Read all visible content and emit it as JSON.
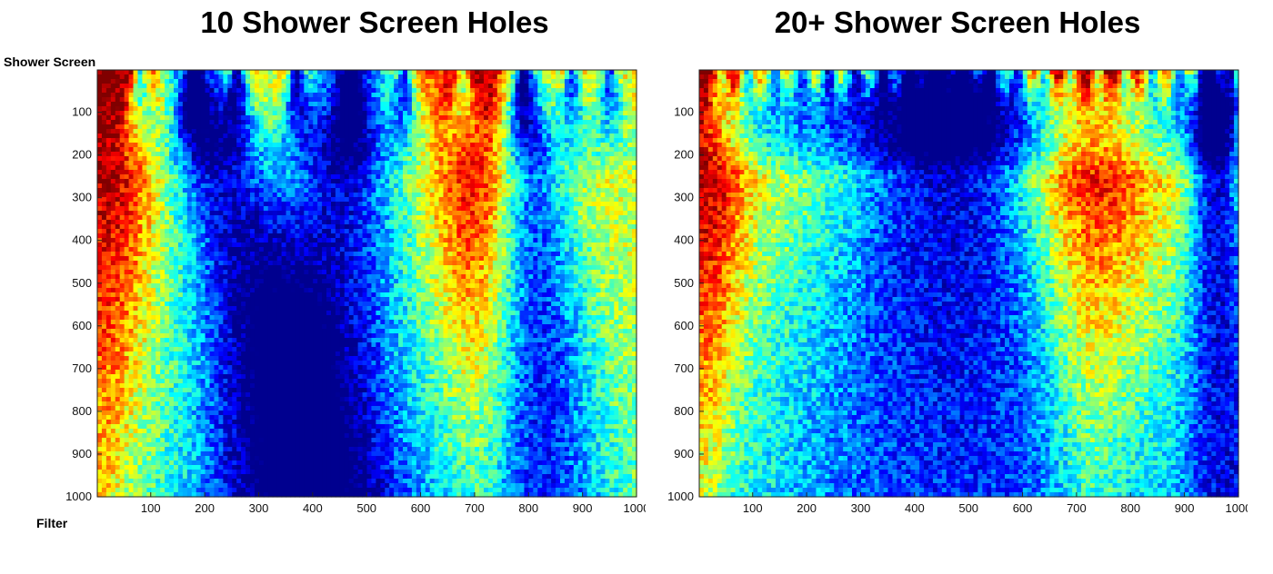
{
  "labels": {
    "top_left": "Shower Screen",
    "bottom_left": "Filter"
  },
  "colors": {
    "colormap": [
      "#00008f",
      "#0000ff",
      "#0080ff",
      "#00ffff",
      "#80ff80",
      "#ffff00",
      "#ff8000",
      "#ff0000",
      "#800000"
    ]
  },
  "chart_data": [
    {
      "type": "heatmap",
      "title": "10 Shower Screen Holes",
      "colormap": "jet",
      "xlim": [
        1,
        1000
      ],
      "ylim": [
        1,
        1000
      ],
      "y_reversed": true,
      "x_ticks": [
        100,
        200,
        300,
        400,
        500,
        600,
        700,
        800,
        900,
        1000
      ],
      "y_ticks": [
        100,
        200,
        300,
        400,
        500,
        600,
        700,
        800,
        900,
        1000
      ],
      "holes_x": [
        80,
        180,
        260,
        370,
        470,
        570,
        680,
        790,
        880,
        950
      ],
      "cold_streaks": [
        {
          "x_top": 180,
          "x_bottom": 380,
          "width": 120
        },
        {
          "x_top": 470,
          "x_bottom": 400,
          "width": 140
        },
        {
          "x_top": 790,
          "x_bottom": 820,
          "width": 90
        }
      ],
      "hot_streaks": [
        {
          "x_top": 20,
          "x_bottom": 10,
          "width": 80
        },
        {
          "x_top": 720,
          "x_bottom": 720,
          "width": 90
        }
      ]
    },
    {
      "type": "heatmap",
      "title": "20+ Shower Screen Holes",
      "colormap": "jet",
      "xlim": [
        1,
        1000
      ],
      "ylim": [
        1,
        1000
      ],
      "y_reversed": true,
      "x_ticks": [
        100,
        200,
        300,
        400,
        500,
        600,
        700,
        800,
        900,
        1000
      ],
      "y_ticks": [
        100,
        200,
        300,
        400,
        500,
        600,
        700,
        800,
        900,
        1000
      ],
      "holes_x": [
        40,
        90,
        140,
        190,
        240,
        290,
        340,
        390,
        440,
        490,
        540,
        590,
        640,
        690,
        740,
        790,
        840,
        890,
        940,
        985
      ],
      "cold_streaks": [
        {
          "x_top": 460,
          "x_bottom": 470,
          "width": 260
        },
        {
          "x_top": 950,
          "x_bottom": 980,
          "width": 60
        }
      ],
      "hot_streaks": [
        {
          "x_top": 20,
          "x_bottom": 10,
          "width": 60
        },
        {
          "x_top": 720,
          "x_bottom": 720,
          "width": 110
        }
      ]
    }
  ]
}
